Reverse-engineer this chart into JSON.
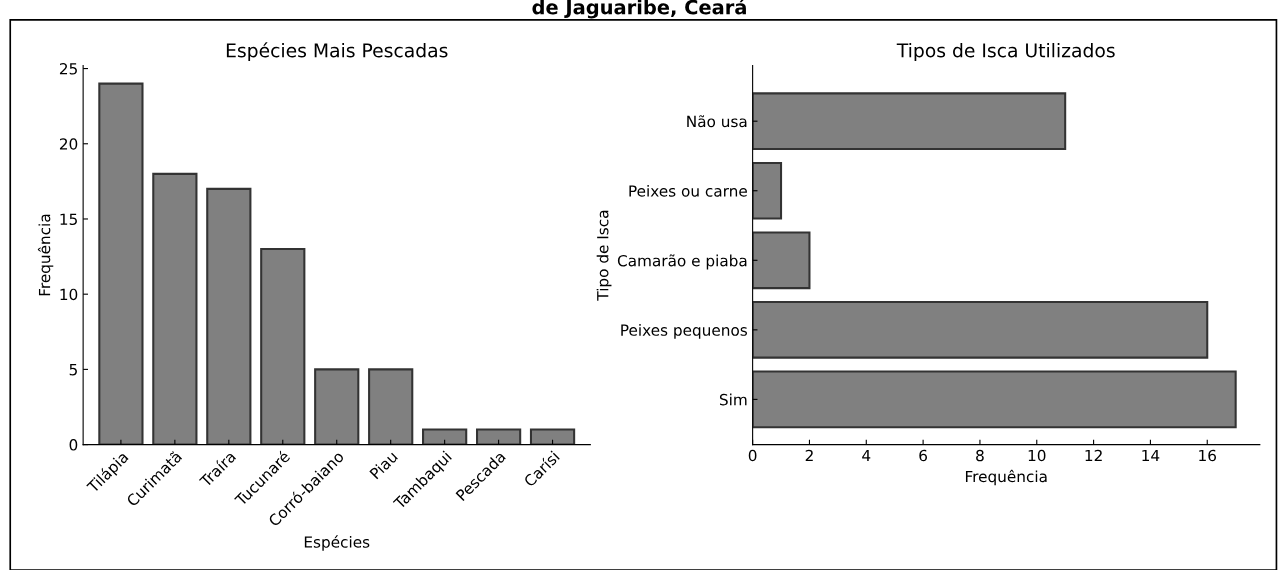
{
  "chart_data": [
    {
      "type": "bar",
      "title": "Espécies Mais Pescadas",
      "xlabel": "Espécies",
      "ylabel": "Frequência",
      "annotations": [
        "de Jaguaribe, Ceará"
      ],
      "categories": [
        "Tilápia",
        "Curimatã",
        "Traíra",
        "Tucunaré",
        "Corró-baiano",
        "Piau",
        "Tambaqui",
        "Pescada",
        "Carísi"
      ],
      "values": [
        24,
        18,
        17,
        13,
        5,
        5,
        1,
        1,
        1
      ],
      "color": "#808080",
      "ylim": [
        0,
        25.2
      ],
      "yticks": [
        0,
        5,
        10,
        15,
        20,
        25
      ],
      "grid": false
    },
    {
      "type": "bar",
      "orientation": "horizontal",
      "title": "Tipos de Isca Utilizados",
      "xlabel": "Frequência",
      "ylabel": "Tipo de Isca",
      "categories": [
        "Não usa",
        "Peixes ou carne",
        "Camarão e piaba",
        "Peixes pequenos",
        "Sim"
      ],
      "values": [
        11,
        1,
        2,
        16,
        17
      ],
      "color": "#808080",
      "xlim": [
        0,
        17.85
      ],
      "xticks": [
        0,
        2,
        4,
        6,
        8,
        10,
        12,
        14,
        16
      ],
      "grid": false
    }
  ]
}
